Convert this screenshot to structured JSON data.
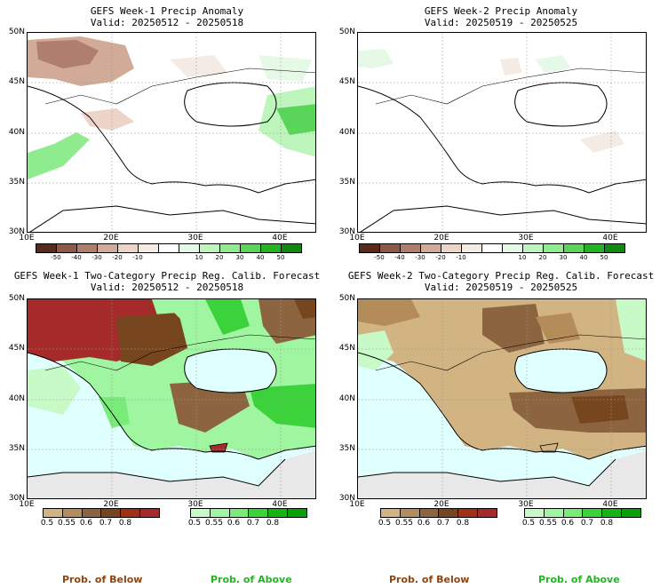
{
  "panels": [
    {
      "title": "GEFS Week-1 Precip Anomaly",
      "valid": "Valid: 20250512 - 20250518"
    },
    {
      "title": "GEFS Week-2 Precip Anomaly",
      "valid": "Valid: 20250519 - 20250525"
    },
    {
      "title": "GEFS Week-1 Two-Category Precip Reg. Calib. Forecast",
      "valid": "Valid: 20250512 - 20250518"
    },
    {
      "title": "GEFS Week-2 Two-Category Precip Reg. Calib. Forecast",
      "valid": "Valid: 20250519 - 20250525"
    }
  ],
  "axes": {
    "lat_labels": [
      "50N",
      "45N",
      "40N",
      "35N",
      "30N"
    ],
    "lon_labels": [
      "10E",
      "20E",
      "30E",
      "40E"
    ]
  },
  "anomaly_colorbar": {
    "ticks": [
      "-50",
      "-40",
      "-30",
      "-20",
      "-10",
      "10",
      "20",
      "30",
      "40",
      "50"
    ],
    "colors": [
      "#5a2a1a",
      "#8c5a46",
      "#b07e6c",
      "#d2aa98",
      "#ecd4c8",
      "#f5ebe5",
      "#ffffff",
      "#e6f8e6",
      "#bdf5bd",
      "#8eec8e",
      "#5ad55a",
      "#22b422",
      "#108a10"
    ]
  },
  "prob_colorbars": {
    "below": {
      "ticks": [
        "0.5",
        "0.55",
        "0.6",
        "0.7",
        "0.8"
      ],
      "colors": [
        "#d2b482",
        "#b48c5a",
        "#8c6440",
        "#78461e",
        "#a03214",
        "#a52a2a"
      ]
    },
    "above": {
      "ticks": [
        "0.5",
        "0.55",
        "0.6",
        "0.7",
        "0.8"
      ],
      "colors": [
        "#c8fac8",
        "#a0f5a0",
        "#78eb78",
        "#3cd23c",
        "#14b414",
        "#08a008"
      ]
    }
  },
  "legend": {
    "below_label": "Prob. of Below",
    "above_label": "Prob. of Above",
    "below_color": "#8b4513",
    "above_color": "#22b422"
  },
  "map_colors": {
    "sea_fill": "#e0ffff",
    "nodata_fill": "#e8e8e8",
    "land_fill": "#ffffff"
  }
}
